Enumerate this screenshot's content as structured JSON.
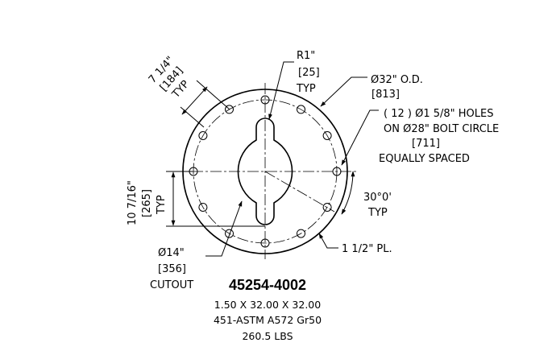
{
  "part": {
    "number": "45254-4002",
    "size": "1.50 X 32.00 X 32.00",
    "material": "451-ASTM A572 Gr50",
    "weight": "260.5 LBS"
  },
  "callouts": {
    "radius": {
      "line1": "R1\"",
      "line2": "[25]",
      "line3": "TYP"
    },
    "outer_diameter": {
      "line1": "Ø32\" O.D.",
      "line2": "[813]"
    },
    "holes": {
      "line1": "( 12 ) Ø1 5/8\"  HOLES",
      "line2": "ON   Ø28\" BOLT CIRCLE",
      "line3": "[711]",
      "line4": "EQUALLY SPACED"
    },
    "angle": {
      "line1": "30°0'",
      "line2": "TYP"
    },
    "thickness": {
      "line1": "1 1/2\" PL."
    },
    "cutout": {
      "line1": "Ø14\"",
      "line2": "[356]",
      "line3": "CUTOUT"
    },
    "hole_spacing": {
      "line1": "7 1/4\"",
      "line2": "[184]",
      "line3": "TYP"
    },
    "vertical_spacing": {
      "line1": "10 7/16\"",
      "line2": "[265]",
      "line3": "TYP"
    }
  }
}
